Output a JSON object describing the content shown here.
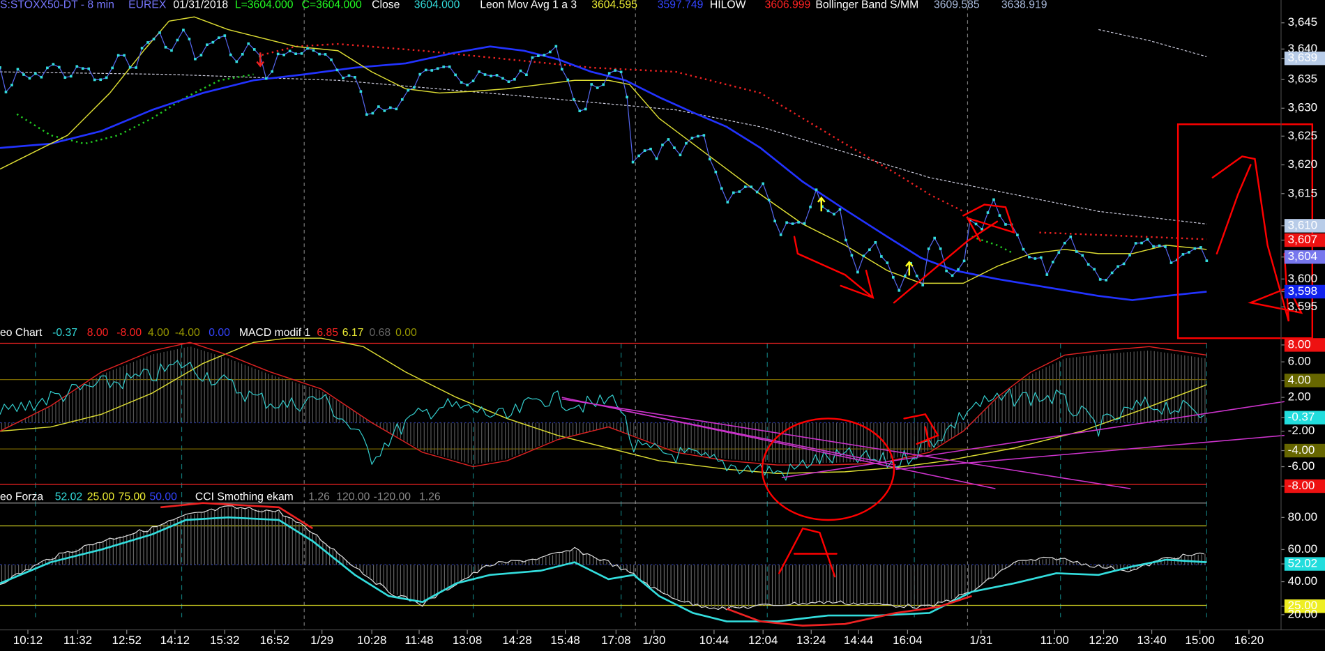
{
  "header": [
    "S:STOXX50-DT - 8 min",
    "EUREX",
    "01/31/2018",
    "L=3604.000",
    "C=3604.000",
    "Close",
    "3604.000",
    "Leon Mov Avg 1 a 3",
    "3604.595",
    "3597.749",
    "HILOW",
    "3606.999",
    "Bollinger Band S/MM",
    "3609.585",
    "3638.919"
  ],
  "price_axis": [
    "3,645",
    "3,640",
    "3,639",
    "3,635",
    "3,630",
    "3,625",
    "3,620",
    "3,615",
    "3,610",
    "3,607",
    "3,604",
    "3,600",
    "3,598",
    "3,595"
  ],
  "macd_header": [
    "eo Chart",
    "-0.37",
    "8.00",
    "-8.00",
    "4.00",
    "-4.00",
    "0.00",
    "MACD modif 1",
    "6.85",
    "6.17",
    "0.68",
    "0.00"
  ],
  "macd_axis": [
    "8.00",
    "6.00",
    "4.00",
    "2.00",
    "-0.37",
    "-2.00",
    "-4.00",
    "-6.00",
    "-8.00"
  ],
  "cci_header": [
    "eo Forza",
    "52.02",
    "25.00",
    "75.00",
    "50.00",
    "CCI Smothing ekam",
    "1.26",
    "120.00",
    "-120.00",
    "1.26"
  ],
  "cci_axis": [
    "80.00",
    "60.00",
    "52.02",
    "40.00",
    "25.00",
    "20.00"
  ],
  "time_axis": [
    "10:12",
    "11:32",
    "12:52",
    "14:12",
    "15:32",
    "16:52",
    "1/29",
    "10:28",
    "11:48",
    "13:08",
    "14:28",
    "15:48",
    "17:08",
    "1/30",
    "10:44",
    "12:04",
    "13:24",
    "14:44",
    "16:04",
    "1/31",
    "11:00",
    "12:20",
    "13:40",
    "15:00",
    "16:20"
  ]
}
